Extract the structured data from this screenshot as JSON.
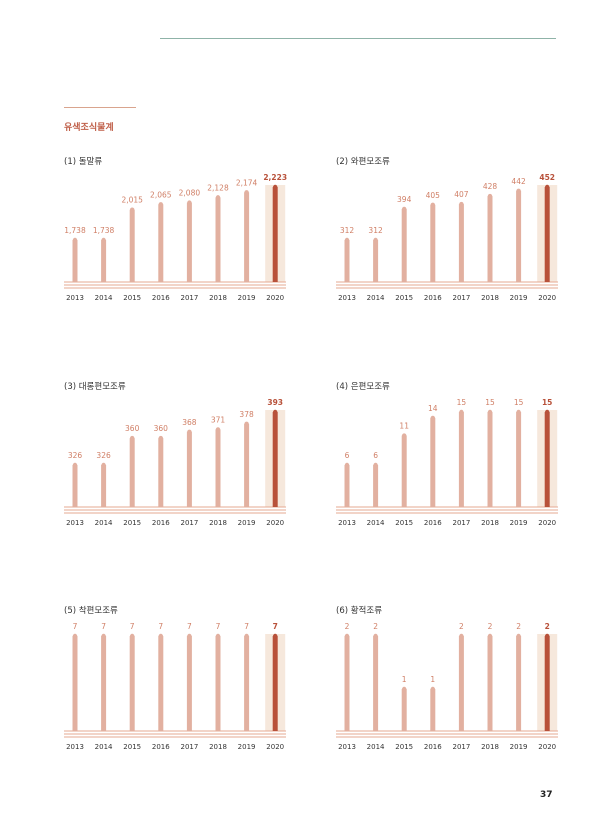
{
  "section_title": "유색조식물계",
  "page_number": "37",
  "colors": {
    "bar": "#e2b0a0",
    "highlight_bar": "#b8513a",
    "highlight_bg": "#f6e8dc",
    "label": "#d07f66",
    "highlight_label": "#b8513a",
    "baseline": "#e6a992"
  },
  "chart_data": [
    {
      "type": "bar",
      "title": "(1) 돌말류",
      "categories": [
        "2013",
        "2014",
        "2015",
        "2016",
        "2017",
        "2018",
        "2019",
        "2020"
      ],
      "values": [
        1738,
        1738,
        2015,
        2065,
        2080,
        2128,
        2174,
        2223
      ],
      "labels": [
        "1,738",
        "1,738",
        "2,015",
        "2,065",
        "2,080",
        "2,128",
        "2,174",
        "2,223"
      ],
      "highlight_index": 7
    },
    {
      "type": "bar",
      "title": "(2) 와편모조류",
      "categories": [
        "2013",
        "2014",
        "2015",
        "2016",
        "2017",
        "2018",
        "2019",
        "2020"
      ],
      "values": [
        312,
        312,
        394,
        405,
        407,
        428,
        442,
        452
      ],
      "labels": [
        "312",
        "312",
        "394",
        "405",
        "407",
        "428",
        "442",
        "452"
      ],
      "highlight_index": 7
    },
    {
      "type": "bar",
      "title": "(3) 대롱편모조류",
      "categories": [
        "2013",
        "2014",
        "2015",
        "2016",
        "2017",
        "2018",
        "2019",
        "2020"
      ],
      "values": [
        326,
        326,
        360,
        360,
        368,
        371,
        378,
        393
      ],
      "labels": [
        "326",
        "326",
        "360",
        "360",
        "368",
        "371",
        "378",
        "393"
      ],
      "highlight_index": 7
    },
    {
      "type": "bar",
      "title": "(4) 은편모조류",
      "categories": [
        "2013",
        "2014",
        "2015",
        "2016",
        "2017",
        "2018",
        "2019",
        "2020"
      ],
      "values": [
        6,
        6,
        11,
        14,
        15,
        15,
        15,
        15
      ],
      "labels": [
        "6",
        "6",
        "11",
        "14",
        "15",
        "15",
        "15",
        "15"
      ],
      "highlight_index": 7
    },
    {
      "type": "bar",
      "title": "(5) 착편모조류",
      "categories": [
        "2013",
        "2014",
        "2015",
        "2016",
        "2017",
        "2018",
        "2019",
        "2020"
      ],
      "values": [
        7,
        7,
        7,
        7,
        7,
        7,
        7,
        7
      ],
      "labels": [
        "7",
        "7",
        "7",
        "7",
        "7",
        "7",
        "7",
        "7"
      ],
      "highlight_index": 7
    },
    {
      "type": "bar",
      "title": "(6) 황적조류",
      "categories": [
        "2013",
        "2014",
        "2015",
        "2016",
        "2017",
        "2018",
        "2019",
        "2020"
      ],
      "values": [
        2,
        2,
        1,
        1,
        2,
        2,
        2,
        2
      ],
      "labels": [
        "2",
        "2",
        "1",
        "1",
        "2",
        "2",
        "2",
        "2"
      ],
      "highlight_index": 7
    }
  ]
}
